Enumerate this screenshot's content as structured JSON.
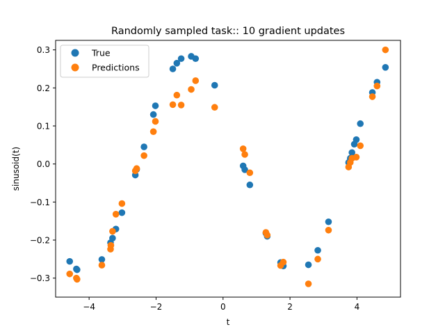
{
  "chart_data": {
    "type": "scatter",
    "title": "Randomly sampled task:: 10 gradient updates",
    "xlabel": "t",
    "ylabel": "sinusoid(t)",
    "xlim": [
      -5.0,
      5.3
    ],
    "ylim": [
      -0.35,
      0.325
    ],
    "xticks": [
      -4,
      -2,
      0,
      2,
      4
    ],
    "xtick_labels": [
      "−4",
      "−2",
      "0",
      "2",
      "4"
    ],
    "yticks": [
      -0.3,
      -0.2,
      -0.1,
      0.0,
      0.1,
      0.2,
      0.3
    ],
    "ytick_labels": [
      "−0.3",
      "−0.2",
      "−0.1",
      "0.0",
      "0.1",
      "0.2",
      "0.3"
    ],
    "grid": false,
    "legend_position": "top-left",
    "series": [
      {
        "name": "True",
        "color": "#1f77b4",
        "points": [
          [
            -4.58,
            -0.256
          ],
          [
            -4.38,
            -0.276
          ],
          [
            -4.36,
            -0.278
          ],
          [
            -3.62,
            -0.251
          ],
          [
            -3.36,
            -0.207
          ],
          [
            -3.3,
            -0.195
          ],
          [
            -3.2,
            -0.171
          ],
          [
            -3.02,
            -0.128
          ],
          [
            -2.62,
            -0.029
          ],
          [
            -2.58,
            -0.014
          ],
          [
            -2.36,
            0.045
          ],
          [
            -2.08,
            0.13
          ],
          [
            -2.02,
            0.153
          ],
          [
            -1.5,
            0.25
          ],
          [
            -1.38,
            0.265
          ],
          [
            -1.25,
            0.277
          ],
          [
            -0.95,
            0.283
          ],
          [
            -0.82,
            0.277
          ],
          [
            -0.25,
            0.207
          ],
          [
            0.6,
            -0.005
          ],
          [
            0.65,
            -0.015
          ],
          [
            0.8,
            -0.055
          ],
          [
            1.28,
            -0.182
          ],
          [
            1.32,
            -0.19
          ],
          [
            1.72,
            -0.259
          ],
          [
            1.8,
            -0.268
          ],
          [
            2.55,
            -0.265
          ],
          [
            2.83,
            -0.227
          ],
          [
            3.15,
            -0.152
          ],
          [
            3.75,
            0.004
          ],
          [
            3.8,
            0.015
          ],
          [
            3.85,
            0.03
          ],
          [
            3.92,
            0.052
          ],
          [
            3.98,
            0.064
          ],
          [
            4.1,
            0.106
          ],
          [
            4.46,
            0.188
          ],
          [
            4.6,
            0.215
          ],
          [
            4.85,
            0.254
          ]
        ]
      },
      {
        "name": "Predictions",
        "color": "#ff7f0e",
        "points": [
          [
            -4.58,
            -0.289
          ],
          [
            -4.38,
            -0.3
          ],
          [
            -4.36,
            -0.303
          ],
          [
            -3.62,
            -0.266
          ],
          [
            -3.36,
            -0.224
          ],
          [
            -3.35,
            -0.214
          ],
          [
            -3.3,
            -0.177
          ],
          [
            -3.2,
            -0.132
          ],
          [
            -3.02,
            -0.104
          ],
          [
            -2.62,
            -0.018
          ],
          [
            -2.58,
            -0.012
          ],
          [
            -2.36,
            0.022
          ],
          [
            -2.08,
            0.085
          ],
          [
            -2.02,
            0.112
          ],
          [
            -1.5,
            0.156
          ],
          [
            -1.38,
            0.181
          ],
          [
            -1.25,
            0.155
          ],
          [
            -0.95,
            0.196
          ],
          [
            -0.82,
            0.219
          ],
          [
            -0.25,
            0.149
          ],
          [
            0.6,
            0.04
          ],
          [
            0.65,
            0.025
          ],
          [
            0.8,
            -0.023
          ],
          [
            1.28,
            -0.18
          ],
          [
            1.32,
            -0.187
          ],
          [
            1.72,
            -0.267
          ],
          [
            1.8,
            -0.258
          ],
          [
            2.55,
            -0.315
          ],
          [
            2.83,
            -0.25
          ],
          [
            3.15,
            -0.174
          ],
          [
            3.75,
            -0.008
          ],
          [
            3.8,
            0.004
          ],
          [
            3.85,
            0.015
          ],
          [
            3.98,
            0.018
          ],
          [
            4.1,
            0.048
          ],
          [
            4.46,
            0.177
          ],
          [
            4.6,
            0.205
          ],
          [
            4.85,
            0.3
          ]
        ]
      }
    ]
  }
}
